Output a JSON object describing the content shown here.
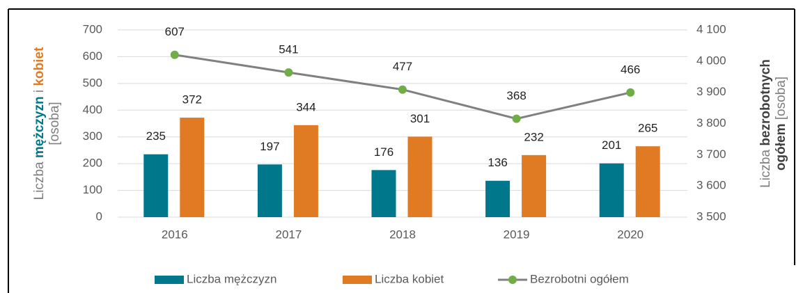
{
  "chart_data": {
    "type": "bar",
    "categories": [
      "2016",
      "2017",
      "2018",
      "2019",
      "2020"
    ],
    "series": [
      {
        "name": "Liczba mężczyzn",
        "type": "bar",
        "color": "#00778b",
        "values": [
          235,
          197,
          176,
          136,
          201
        ]
      },
      {
        "name": "Liczba kobiet",
        "type": "bar",
        "color": "#e07b24",
        "values": [
          372,
          344,
          301,
          232,
          265
        ]
      },
      {
        "name": "Bezrobotni ogółem",
        "type": "line",
        "color": "#808080",
        "marker_color": "#70ad47",
        "values": [
          607,
          541,
          477,
          368,
          466
        ]
      }
    ],
    "ylim": [
      0,
      700
    ],
    "yticks": [
      0,
      100,
      200,
      300,
      400,
      500,
      600,
      700
    ],
    "y2lim": [
      3500,
      4100
    ],
    "y2ticks": [
      {
        "value": 3500,
        "label": "3 500"
      },
      {
        "value": 3600,
        "label": "3 600"
      },
      {
        "value": 3700,
        "label": "3 700"
      },
      {
        "value": 3800,
        "label": "3 800"
      },
      {
        "value": 3900,
        "label": "3 900"
      },
      {
        "value": 4000,
        "label": "4 000"
      },
      {
        "value": 4100,
        "label": "4 100"
      }
    ],
    "ylabel": [
      [
        {
          "text": "Liczba ",
          "color": "#7f7f7f"
        },
        {
          "text": "mężczyzn",
          "color": "#00778b",
          "bold": true
        },
        {
          "text": " i ",
          "color": "#7f7f7f"
        },
        {
          "text": "kobiet",
          "color": "#e07b24",
          "bold": true
        }
      ],
      [
        {
          "text": "[osoba]",
          "color": "#7f7f7f"
        }
      ]
    ],
    "y2label": [
      [
        {
          "text": "Liczba ",
          "color": "#7f7f7f"
        },
        {
          "text": "bezrobotnych",
          "color": "#404040",
          "bold": true
        }
      ],
      [
        {
          "text": "ogółem",
          "color": "#404040",
          "bold": true
        },
        {
          "text": " [osoba]",
          "color": "#7f7f7f"
        }
      ]
    ],
    "grid": true,
    "legend": "bottom"
  }
}
